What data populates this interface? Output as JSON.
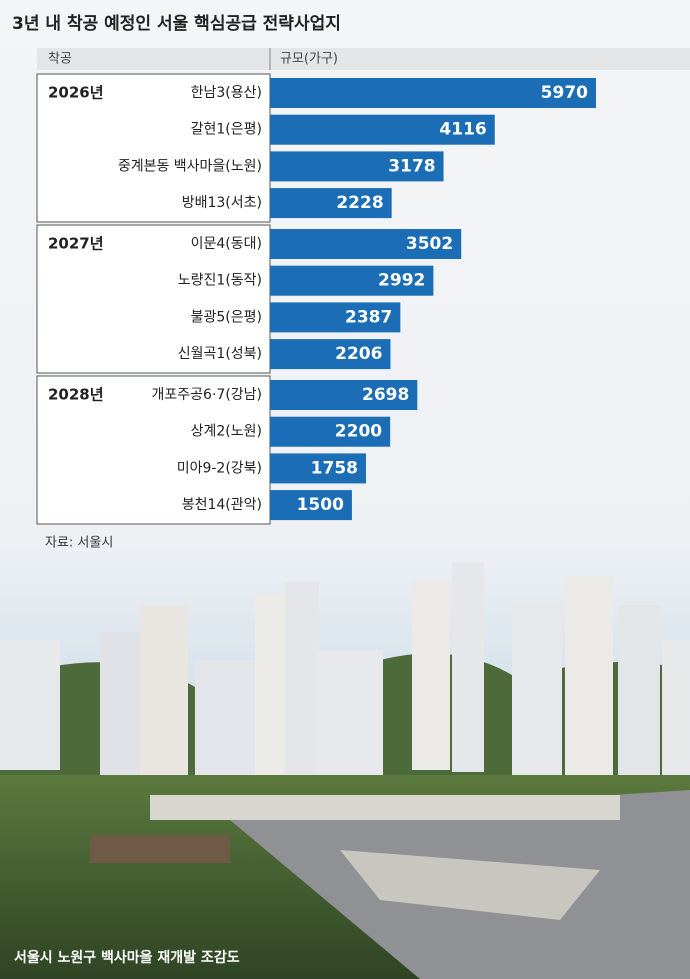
{
  "chart_data": {
    "type": "bar",
    "title": "3년 내 착공 예정인 서울 핵심공급 전략사업지",
    "group_header": "착공",
    "value_header": "규모(가구)",
    "color": "#1b6db5",
    "groups": [
      {
        "label": "2026년",
        "categories": [
          "한남3(용산)",
          "갈현1(은평)",
          "중계본동 백사마을(노원)",
          "방배13(서초)"
        ],
        "values": [
          5970,
          4116,
          3178,
          2228
        ]
      },
      {
        "label": "2027년",
        "categories": [
          "이문4(동대)",
          "노량진1(동작)",
          "불광5(은평)",
          "신월곡1(성북)"
        ],
        "values": [
          3502,
          2992,
          2387,
          2206
        ]
      },
      {
        "label": "2028년",
        "categories": [
          "개포주공6·7(강남)",
          "상계2(노원)",
          "미아9-2(강북)",
          "봉천14(관악)"
        ],
        "values": [
          2698,
          2200,
          1758,
          1500
        ]
      }
    ],
    "source": "자료: 서울시",
    "caption": "서울시 노원구 백사마을 재개발 조감도"
  }
}
